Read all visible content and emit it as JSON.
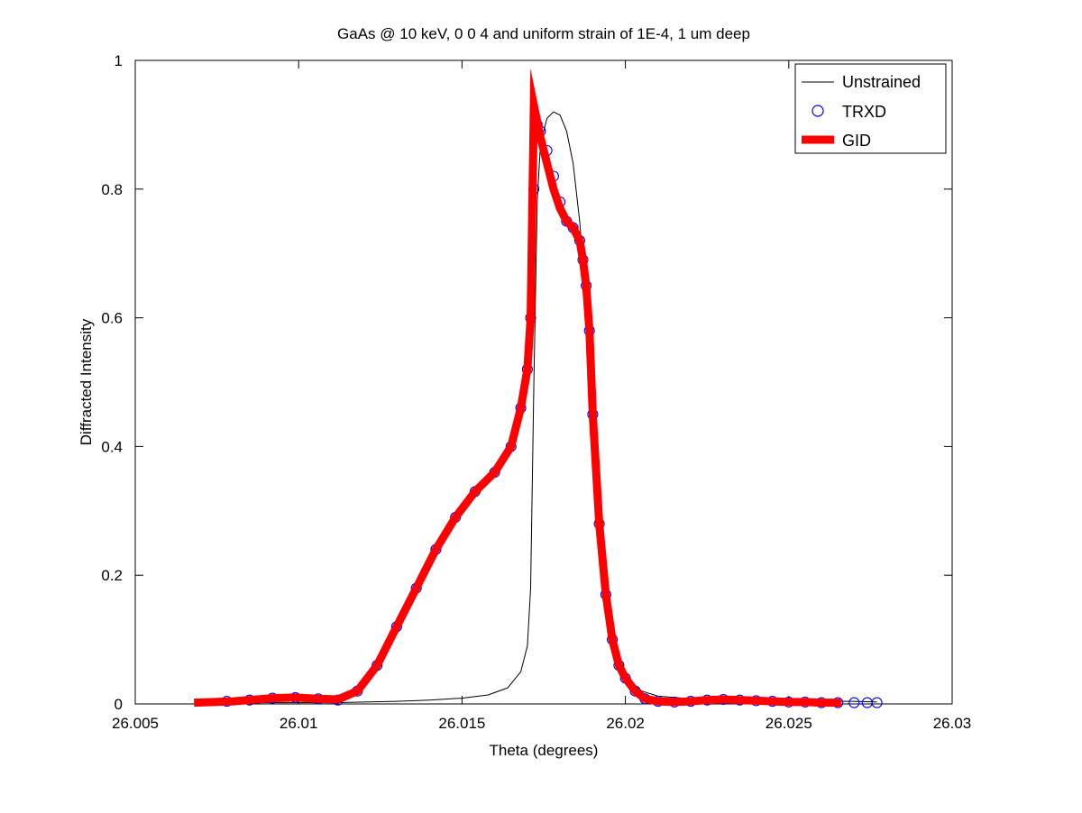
{
  "chart_data": {
    "type": "line",
    "title": "GaAs @ 10 keV,  0  0  4 and uniform strain of 1E-4, 1 um deep",
    "xlabel": "Theta (degrees)",
    "ylabel": "Diffracted Intensity",
    "xlim": [
      26.005,
      26.03
    ],
    "ylim": [
      0,
      1
    ],
    "xticks": [
      26.005,
      26.01,
      26.015,
      26.02,
      26.025,
      26.03
    ],
    "xtick_labels": [
      "26.005",
      "26.01",
      "26.015",
      "26.02",
      "26.025",
      "26.03"
    ],
    "yticks": [
      0,
      0.2,
      0.4,
      0.6,
      0.8,
      1
    ],
    "ytick_labels": [
      "0",
      "0.2",
      "0.4",
      "0.6",
      "0.8",
      "1"
    ],
    "grid": false,
    "legend_position": "top-right",
    "series": [
      {
        "name": "Unstrained",
        "style": "line",
        "color": "#000000",
        "x": [
          26.0078,
          26.009,
          26.01,
          26.011,
          26.012,
          26.013,
          26.014,
          26.015,
          26.0158,
          26.0164,
          26.0168,
          26.017,
          26.0171,
          26.0172,
          26.0173,
          26.0174,
          26.0176,
          26.0178,
          26.018,
          26.0182,
          26.0184,
          26.0186,
          26.0188,
          26.019,
          26.0193,
          26.0197,
          26.02,
          26.0205,
          26.021,
          26.022,
          26.023,
          26.024,
          26.025,
          26.026,
          26.027,
          26.0277
        ],
        "y": [
          0.002,
          0.002,
          0.002,
          0.002,
          0.003,
          0.004,
          0.006,
          0.009,
          0.014,
          0.025,
          0.05,
          0.09,
          0.18,
          0.5,
          0.78,
          0.87,
          0.91,
          0.92,
          0.915,
          0.89,
          0.84,
          0.75,
          0.62,
          0.42,
          0.2,
          0.08,
          0.04,
          0.02,
          0.012,
          0.008,
          0.007,
          0.006,
          0.005,
          0.004,
          0.004,
          0.003
        ]
      },
      {
        "name": "TRXD",
        "style": "marker",
        "color": "#0000ff",
        "x": [
          26.0078,
          26.0085,
          26.0092,
          26.0099,
          26.0106,
          26.0112,
          26.0118,
          26.0124,
          26.013,
          26.0136,
          26.0142,
          26.0148,
          26.0154,
          26.016,
          26.0165,
          26.0168,
          26.017,
          26.0171,
          26.0172,
          26.0173,
          26.0174,
          26.0176,
          26.0178,
          26.018,
          26.0182,
          26.0184,
          26.0186,
          26.0187,
          26.0188,
          26.0189,
          26.019,
          26.0192,
          26.0194,
          26.0196,
          26.0198,
          26.02,
          26.0203,
          26.0206,
          26.021,
          26.0215,
          26.022,
          26.0225,
          26.023,
          26.0235,
          26.024,
          26.0245,
          26.025,
          26.0255,
          26.026,
          26.0265,
          26.027,
          26.0274,
          26.0277
        ],
        "y": [
          0.004,
          0.006,
          0.009,
          0.01,
          0.008,
          0.006,
          0.02,
          0.06,
          0.12,
          0.18,
          0.24,
          0.29,
          0.33,
          0.36,
          0.4,
          0.46,
          0.52,
          0.6,
          0.8,
          0.9,
          0.89,
          0.86,
          0.82,
          0.78,
          0.75,
          0.74,
          0.72,
          0.69,
          0.65,
          0.58,
          0.45,
          0.28,
          0.17,
          0.1,
          0.06,
          0.04,
          0.02,
          0.008,
          0.004,
          0.003,
          0.004,
          0.006,
          0.007,
          0.006,
          0.005,
          0.004,
          0.003,
          0.003,
          0.002,
          0.002,
          0.002,
          0.002,
          0.002
        ]
      },
      {
        "name": "GID",
        "style": "line",
        "color": "#ff0000",
        "x": [
          26.0068,
          26.008,
          26.0092,
          26.0099,
          26.0106,
          26.0112,
          26.0118,
          26.0124,
          26.013,
          26.0136,
          26.0142,
          26.0148,
          26.0154,
          26.016,
          26.0165,
          26.0168,
          26.017,
          26.0171,
          26.0172,
          26.0174,
          26.0176,
          26.0178,
          26.018,
          26.0182,
          26.0184,
          26.0186,
          26.0187,
          26.0188,
          26.0189,
          26.019,
          26.0192,
          26.0194,
          26.0196,
          26.0198,
          26.02,
          26.0203,
          26.0206,
          26.021,
          26.0215,
          26.022,
          26.0225,
          26.023,
          26.0235,
          26.024,
          26.0245,
          26.025,
          26.0255,
          26.026,
          26.0266
        ],
        "y": [
          0.002,
          0.004,
          0.009,
          0.01,
          0.008,
          0.007,
          0.02,
          0.06,
          0.12,
          0.18,
          0.24,
          0.29,
          0.33,
          0.36,
          0.4,
          0.46,
          0.52,
          0.6,
          0.93,
          0.88,
          0.84,
          0.8,
          0.77,
          0.75,
          0.74,
          0.72,
          0.69,
          0.65,
          0.58,
          0.45,
          0.28,
          0.17,
          0.1,
          0.06,
          0.04,
          0.02,
          0.008,
          0.004,
          0.003,
          0.004,
          0.006,
          0.007,
          0.006,
          0.005,
          0.004,
          0.003,
          0.003,
          0.002,
          0.002
        ]
      }
    ]
  }
}
